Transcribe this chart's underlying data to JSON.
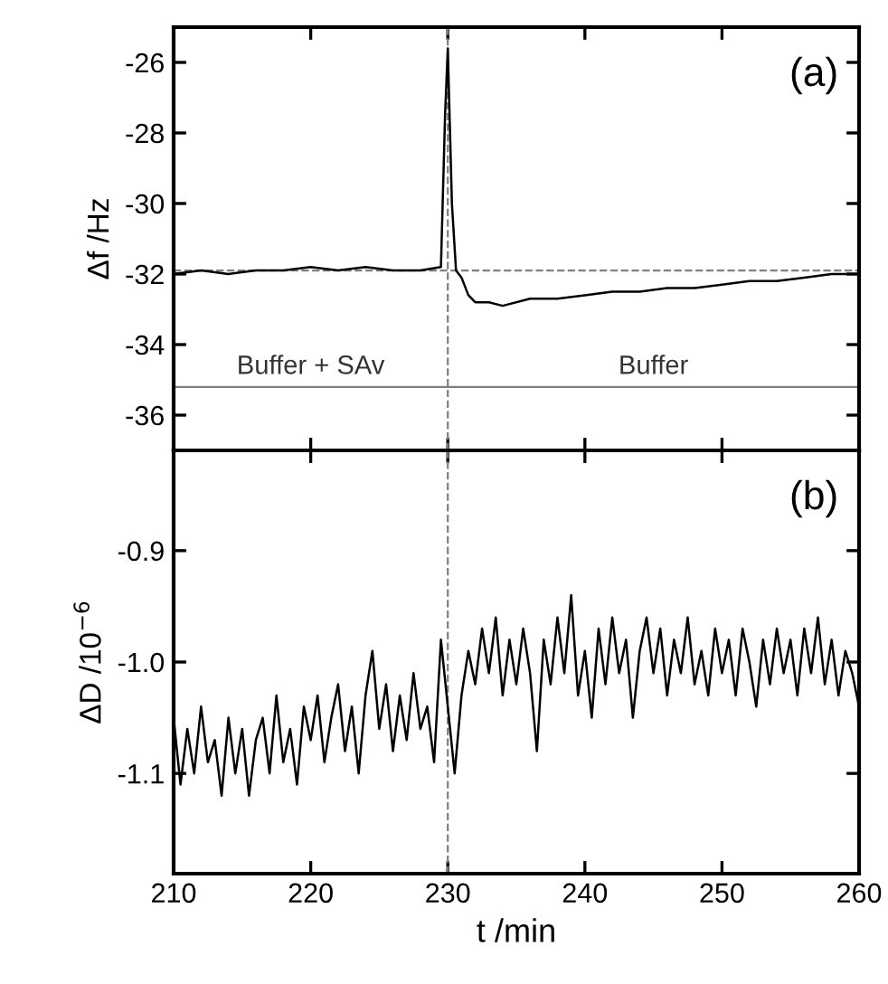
{
  "chart_data": [
    {
      "type": "line",
      "ylabel": "Δf /Hz",
      "annotations": [
        "(a)",
        "Buffer + SAv",
        "Buffer"
      ],
      "x": [
        210,
        212,
        214,
        216,
        218,
        220,
        222,
        224,
        226,
        228,
        229.5,
        229.8,
        230,
        230.3,
        230.6,
        231,
        231.5,
        232,
        233,
        234,
        236,
        238,
        240,
        242,
        244,
        246,
        248,
        250,
        252,
        254,
        256,
        258,
        260
      ],
      "series": [
        {
          "color": "#000000",
          "values": [
            -32.0,
            -31.9,
            -32.0,
            -31.9,
            -31.9,
            -31.8,
            -31.9,
            -31.8,
            -31.9,
            -31.9,
            -31.8,
            -27.5,
            -25.6,
            -30.0,
            -31.9,
            -32.1,
            -32.6,
            -32.8,
            -32.8,
            -32.9,
            -32.7,
            -32.7,
            -32.6,
            -32.5,
            -32.5,
            -32.4,
            -32.4,
            -32.3,
            -32.2,
            -32.2,
            -32.1,
            -32.0,
            -32.0
          ]
        }
      ],
      "xlim": [
        210,
        260
      ],
      "xticks": [
        210,
        220,
        230,
        240,
        250,
        260
      ],
      "ylim": [
        -37,
        -25
      ],
      "yticks": [
        -36,
        -34,
        -32,
        -30,
        -28,
        -26
      ],
      "ref_lines": [
        {
          "axis": "x",
          "value": 230,
          "color": "#808080",
          "line_style": "dashed"
        },
        {
          "axis": "y",
          "value": -31.9,
          "color": "#808080",
          "line_style": "dashed"
        },
        {
          "axis": "y",
          "value": -35.2,
          "color": "#808080",
          "line_style": "solid"
        }
      ],
      "tick_labels": "y",
      "grid": false,
      "legend": false,
      "marker": "none",
      "line_style": "solid"
    },
    {
      "type": "line",
      "ylabel": "ΔD /10$^{−6}$",
      "xlabel": "t /min",
      "annotations": [
        "(b)"
      ],
      "x": [
        210,
        210.5,
        211,
        211.5,
        212,
        212.5,
        213,
        213.5,
        214,
        214.5,
        215,
        215.5,
        216,
        216.5,
        217,
        217.5,
        218,
        218.5,
        219,
        219.5,
        220,
        220.5,
        221,
        221.5,
        222,
        222.5,
        223,
        223.5,
        224,
        224.5,
        225,
        225.5,
        226,
        226.5,
        227,
        227.5,
        228,
        228.5,
        229,
        229.5,
        230,
        230.5,
        231,
        231.5,
        232,
        232.5,
        233,
        233.5,
        234,
        234.5,
        235,
        235.5,
        236,
        236.5,
        237,
        237.5,
        238,
        238.5,
        239,
        239.5,
        240,
        240.5,
        241,
        241.5,
        242,
        242.5,
        243,
        243.5,
        244,
        244.5,
        245,
        245.5,
        246,
        246.5,
        247,
        247.5,
        248,
        248.5,
        249,
        249.5,
        250,
        250.5,
        251,
        251.5,
        252,
        252.5,
        253,
        253.5,
        254,
        254.5,
        255,
        255.5,
        256,
        256.5,
        257,
        257.5,
        258,
        258.5,
        259,
        259.5,
        260
      ],
      "series": [
        {
          "color": "#000000",
          "values": [
            -1.05,
            -1.11,
            -1.06,
            -1.1,
            -1.04,
            -1.09,
            -1.07,
            -1.12,
            -1.05,
            -1.1,
            -1.06,
            -1.12,
            -1.07,
            -1.05,
            -1.1,
            -1.03,
            -1.09,
            -1.06,
            -1.11,
            -1.04,
            -1.07,
            -1.03,
            -1.09,
            -1.05,
            -1.02,
            -1.08,
            -1.04,
            -1.1,
            -1.03,
            -0.99,
            -1.06,
            -1.02,
            -1.08,
            -1.03,
            -1.07,
            -1.01,
            -1.06,
            -1.04,
            -1.09,
            -0.98,
            -1.04,
            -1.1,
            -1.03,
            -0.99,
            -1.02,
            -0.97,
            -1.01,
            -0.96,
            -1.03,
            -0.98,
            -1.02,
            -0.97,
            -1.01,
            -1.08,
            -0.98,
            -1.02,
            -0.96,
            -1.01,
            -0.94,
            -1.03,
            -0.99,
            -1.05,
            -0.97,
            -1.02,
            -0.96,
            -1.01,
            -0.98,
            -1.05,
            -0.99,
            -0.96,
            -1.01,
            -0.97,
            -1.03,
            -0.98,
            -1.01,
            -0.96,
            -1.02,
            -0.99,
            -1.03,
            -0.97,
            -1.01,
            -0.98,
            -1.03,
            -0.97,
            -1.0,
            -1.04,
            -0.98,
            -1.02,
            -0.97,
            -1.01,
            -0.98,
            -1.03,
            -0.97,
            -1.01,
            -0.96,
            -1.02,
            -0.98,
            -1.03,
            -0.99,
            -1.01,
            -1.04
          ]
        }
      ],
      "xlim": [
        210,
        260
      ],
      "xticks": [
        210,
        220,
        230,
        240,
        250,
        260
      ],
      "ylim": [
        -1.19,
        -0.81
      ],
      "yticks": [
        {
          "value": -1.1,
          "label": "-1.1"
        },
        {
          "value": -1.0,
          "label": "-1.0"
        },
        {
          "value": -0.9,
          "label": "-0.9"
        }
      ],
      "ref_lines": [
        {
          "axis": "x",
          "value": 230,
          "color": "#808080",
          "line_style": "dashed"
        }
      ],
      "grid": false,
      "legend": false,
      "marker": "none",
      "line_style": "solid"
    }
  ]
}
